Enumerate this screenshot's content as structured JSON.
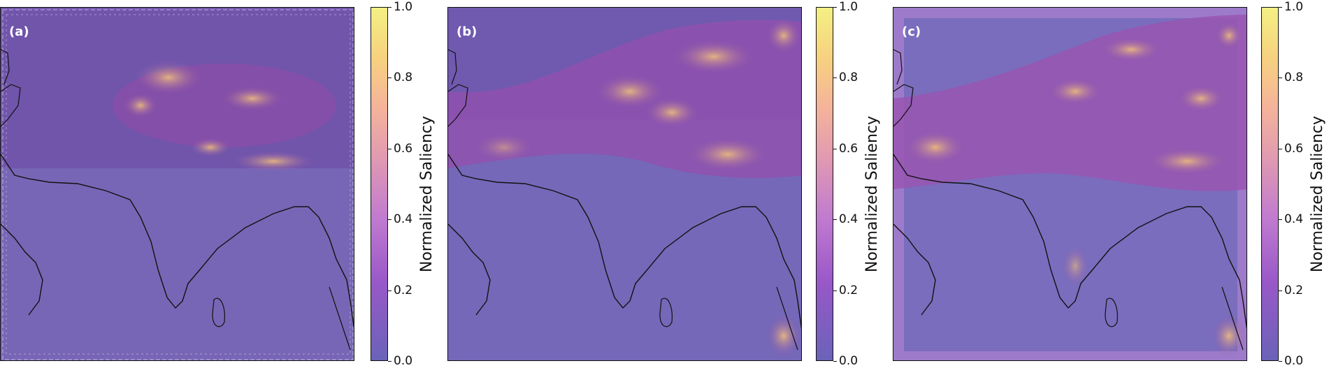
{
  "chart_data": [
    {
      "type": "heatmap",
      "panel_label": "(a)",
      "colorbar": {
        "label": "Normalized Saliency",
        "range": [
          0.0,
          1.0
        ],
        "ticks": [
          "0.0",
          "0.2",
          "0.4",
          "0.6",
          "0.8",
          "1.0"
        ]
      },
      "colors": [
        "#6a63b8",
        "#9858c8",
        "#c07ad0",
        "#e29bb0",
        "#f5b49a",
        "#f6d27f",
        "#f4f083"
      ]
    },
    {
      "type": "heatmap",
      "panel_label": "(b)",
      "colorbar": {
        "label": "Normalized Saliency",
        "range": [
          0.0,
          1.0
        ],
        "ticks": [
          "0.0",
          "0.2",
          "0.4",
          "0.6",
          "0.8",
          "1.0"
        ]
      },
      "colors": [
        "#6a63b8",
        "#9858c8",
        "#c07ad0",
        "#e29bb0",
        "#f5b49a",
        "#f6d27f",
        "#f4f083"
      ]
    },
    {
      "type": "heatmap",
      "panel_label": "(c)",
      "colorbar": {
        "label": "Normalized Saliency",
        "range": [
          0.0,
          1.0
        ],
        "ticks": [
          "0.0",
          "0.2",
          "0.4",
          "0.6",
          "0.8",
          "1.0"
        ]
      },
      "colors": [
        "#6a63b8",
        "#9858c8",
        "#c07ad0",
        "#e29bb0",
        "#f5b49a",
        "#f6d27f",
        "#f4f083"
      ]
    }
  ]
}
